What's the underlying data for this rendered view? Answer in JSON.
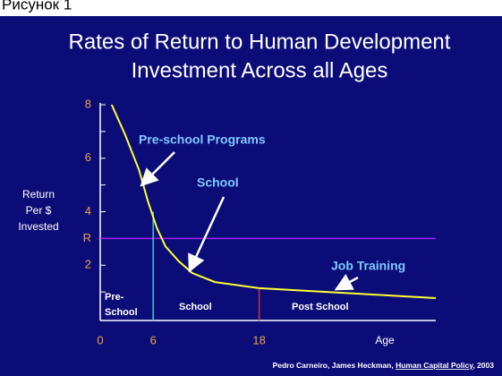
{
  "caption": "Рисунок 1",
  "chart_data": {
    "type": "line",
    "title": [
      "Rates of Return to Human Development",
      "Investment Across all Ages"
    ],
    "y_label": [
      "Return",
      "Per $",
      "Invested"
    ],
    "x_label": "Age",
    "xlim": [
      0,
      38
    ],
    "xticks": [
      0,
      6,
      18
    ],
    "ylim": [
      0,
      8
    ],
    "yticks": [
      2,
      4,
      6,
      8
    ],
    "yminor": [
      1,
      3,
      5,
      7
    ],
    "r_line": {
      "value": 3,
      "label": "R",
      "color": "#a020f0"
    },
    "series": [
      {
        "name": "Return",
        "color": "#ffff33",
        "x": [
          1.3,
          2.8,
          4.4,
          5.4,
          6.4,
          7.4,
          8.9,
          10.4,
          13.0,
          18.0,
          27.2,
          38
        ],
        "values": [
          8.0,
          6.9,
          5.56,
          4.39,
          3.4,
          2.7,
          2.15,
          1.71,
          1.37,
          1.14,
          0.97,
          0.77
        ]
      }
    ],
    "dividers": [
      {
        "x": 6,
        "top": 4.0,
        "color": "#4ac6d6"
      },
      {
        "x": 18,
        "top": 1.15,
        "color": "#d03030"
      }
    ],
    "annotations": [
      "Pre-school Programs",
      "School",
      "Job Training"
    ],
    "regions": [
      [
        "Pre-",
        "School"
      ],
      [
        "School"
      ],
      [
        "Post School"
      ]
    ],
    "source": [
      "Pedro Carneiro, James Heckman, ",
      "Human Capital Policy",
      ", 2003"
    ]
  }
}
